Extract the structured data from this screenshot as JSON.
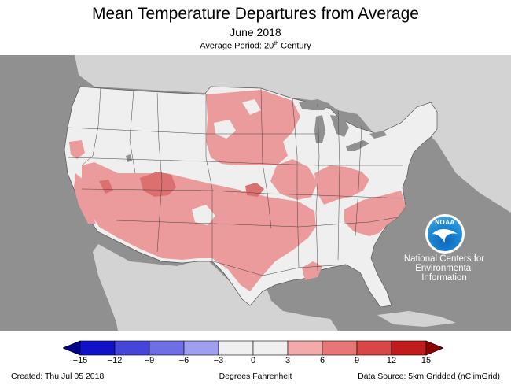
{
  "header": {
    "title": "Mean Temperature Departures from Average",
    "subtitle": "June 2018",
    "period_prefix": "Average Period: 20",
    "period_sup": "th",
    "period_suffix": " Century"
  },
  "map": {
    "ocean_color": "#909090",
    "outside_land_color": "#d3d3d3",
    "near_normal_color": "#efefef",
    "warm_color": "#eb9b9b",
    "warmer_color": "#dc6f6f",
    "lake_color": "#909090"
  },
  "logo": {
    "text": "NOAA",
    "lines": [
      "National Centers for",
      "Environmental",
      "Information"
    ]
  },
  "legend": {
    "ticks": [
      "−15",
      "−12",
      "−9",
      "−6",
      "−3",
      "0",
      "3",
      "6",
      "9",
      "12",
      "15"
    ],
    "colors": [
      "#1111c8",
      "#4545d8",
      "#6f6fe4",
      "#9f9ff0",
      "#f0f0f0",
      "#f0f0f0",
      "#f2aaaa",
      "#e57777",
      "#d94646",
      "#c11c1c"
    ],
    "units": "Degrees Fahrenheit"
  },
  "footer": {
    "created": "Created: Thu Jul 05 2018",
    "source": "Data Source: 5km Gridded (nClimGrid)"
  }
}
